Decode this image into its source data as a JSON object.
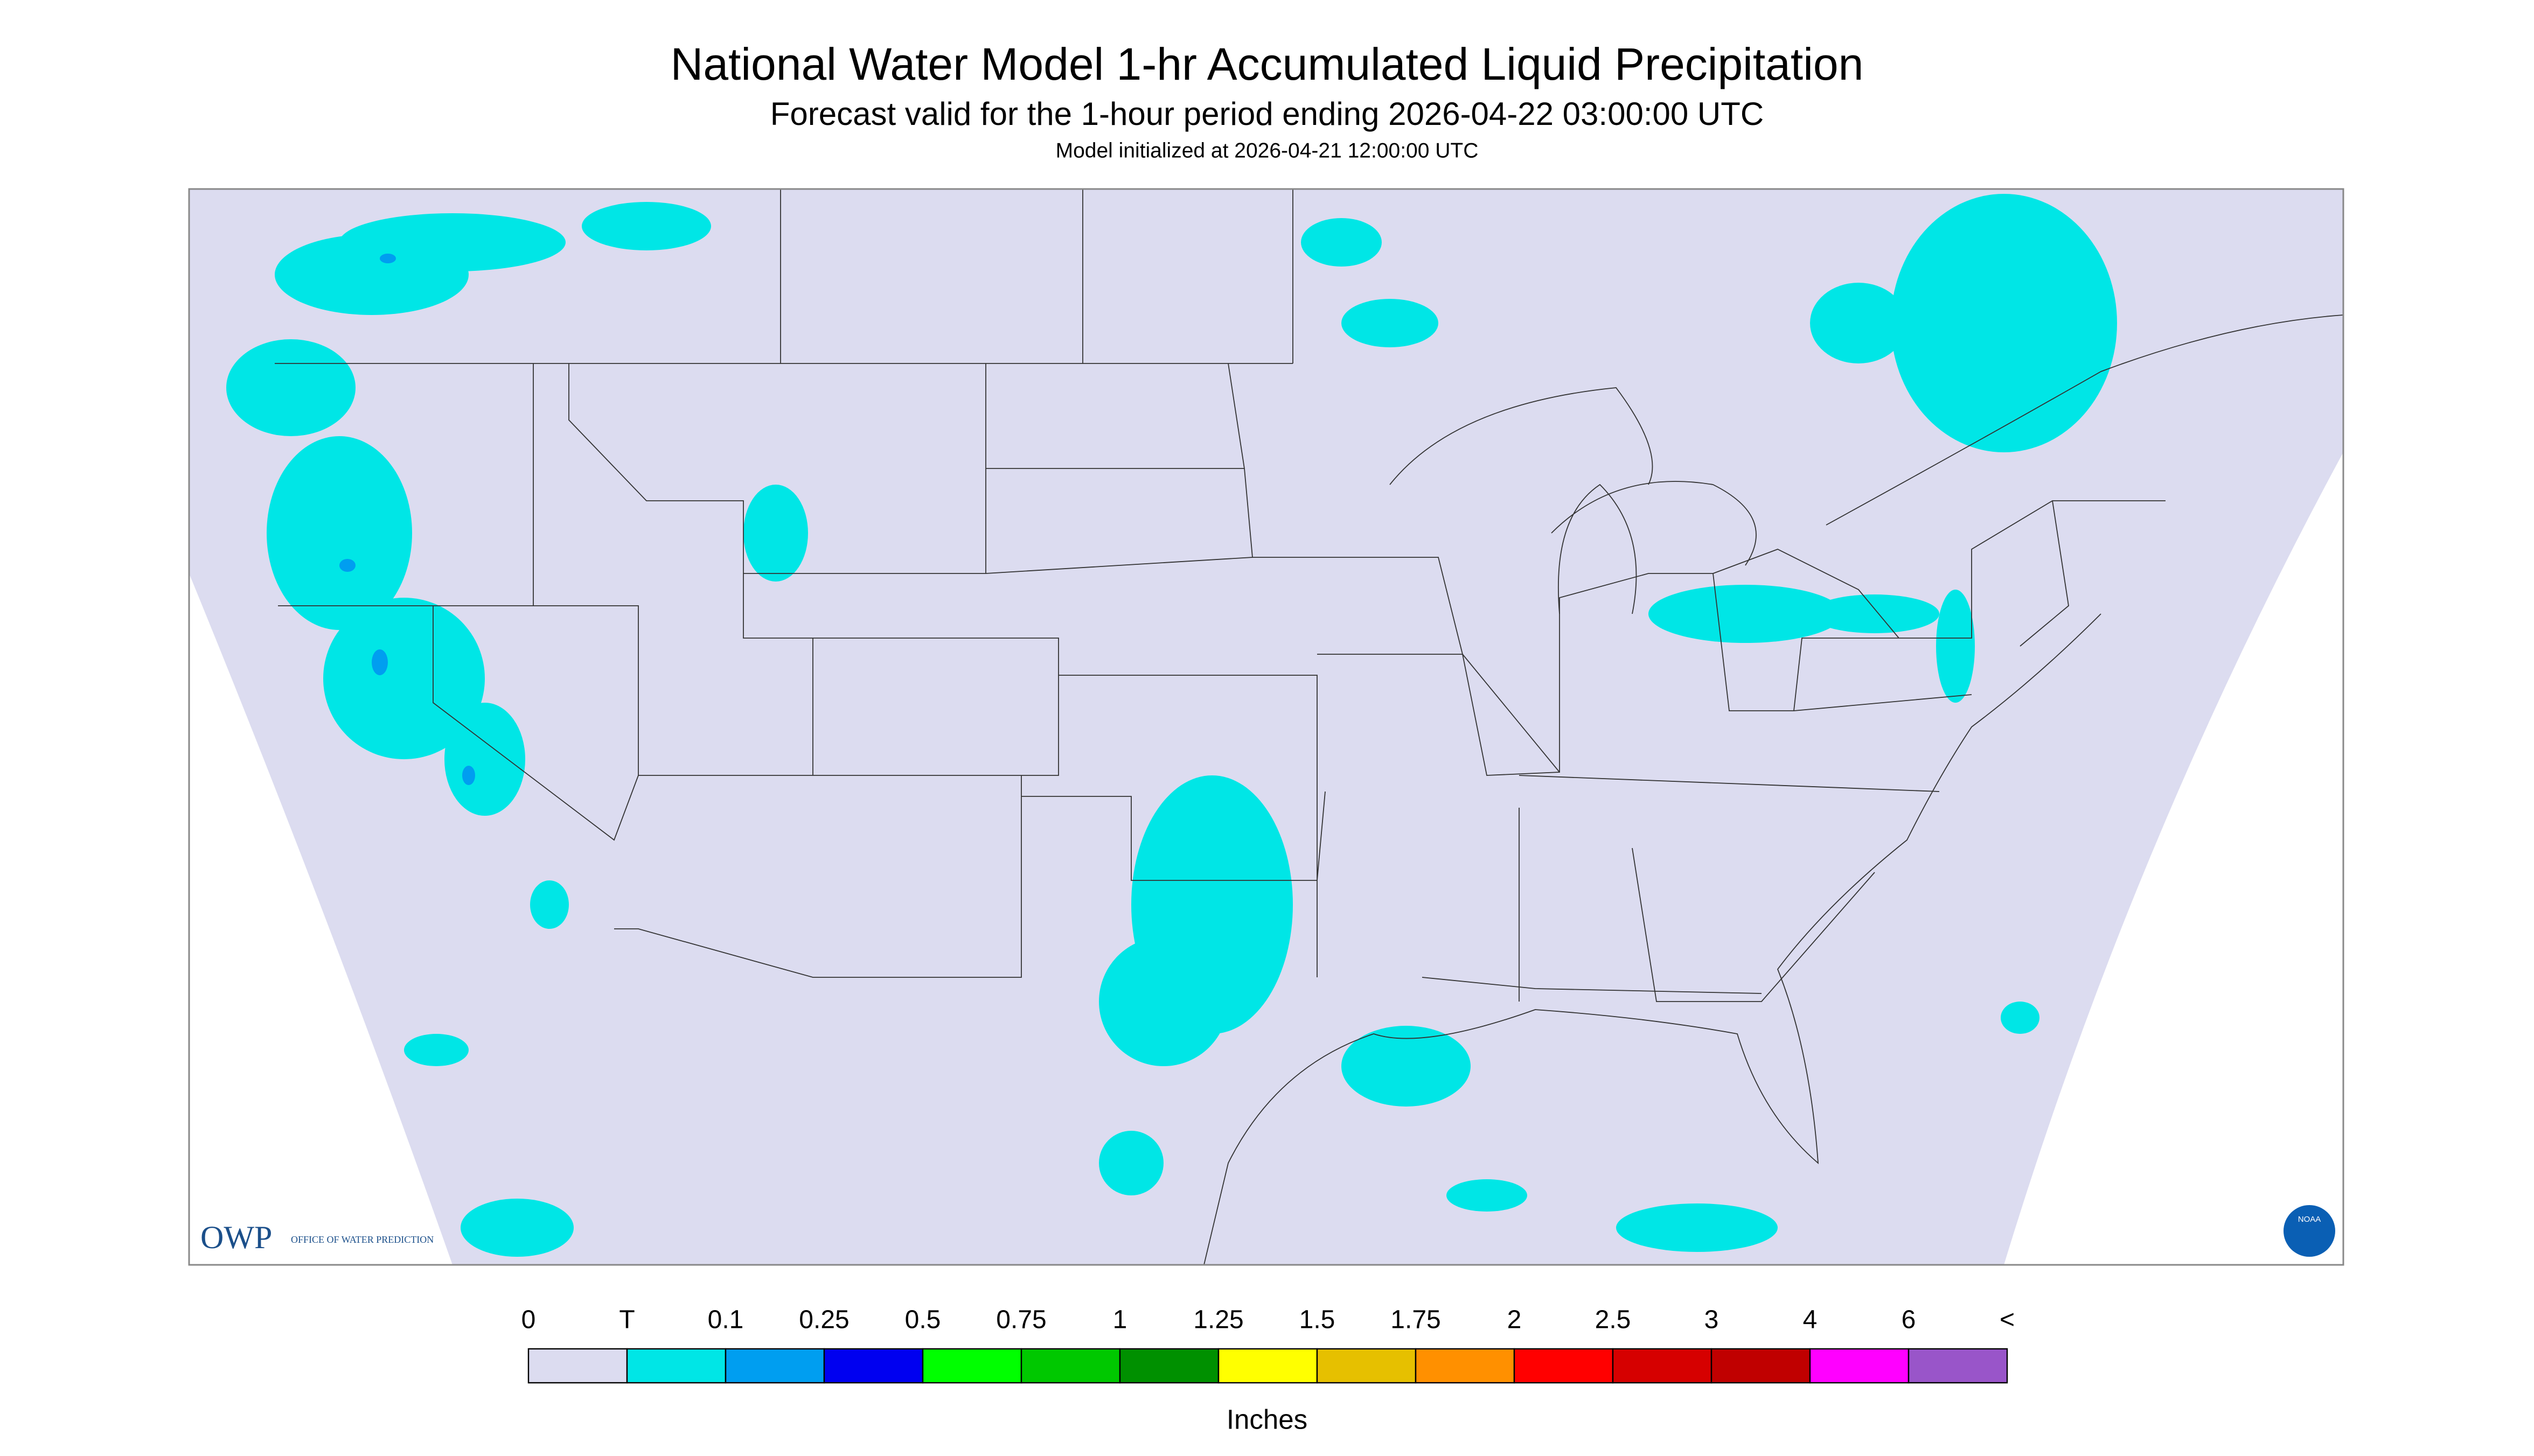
{
  "header": {
    "title": "National Water Model 1-hr Accumulated Liquid Precipitation",
    "subtitle": "Forecast valid for the 1-hour period ending 2026-04-22 03:00:00 UTC",
    "init": "Model initialized at 2026-04-21 12:00:00 UTC"
  },
  "map": {
    "background": "#dcdcf0",
    "precip_color": "#00e6e6",
    "heavy_color": "#009ef0"
  },
  "logo": {
    "owp": "OWP",
    "owp_name": "OFFICE OF WATER PREDICTION",
    "noaa": "NOAA"
  },
  "legend": {
    "labels": [
      "0",
      "T",
      "0.1",
      "0.25",
      "0.5",
      "0.75",
      "1",
      "1.25",
      "1.5",
      "1.75",
      "2",
      "2.5",
      "3",
      "4",
      "6",
      "<"
    ],
    "colors": [
      "#dcdcf0",
      "#00e6e6",
      "#009ef0",
      "#0000f0",
      "#00ff00",
      "#00c800",
      "#009000",
      "#ffff00",
      "#e6c000",
      "#ff9000",
      "#ff0000",
      "#d60000",
      "#c00000",
      "#ff00ff",
      "#9955c9"
    ],
    "unit": "Inches"
  }
}
